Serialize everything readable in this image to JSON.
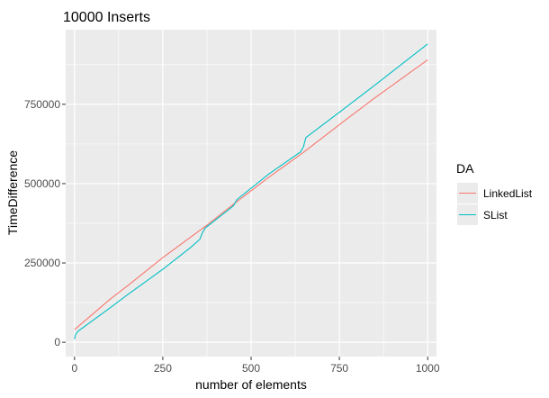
{
  "chart_data": {
    "type": "line",
    "title": "10000 Inserts",
    "xlabel": "number of elements",
    "ylabel": "TimeDifference",
    "xlim": [
      -25,
      1025
    ],
    "ylim": [
      -45000,
      985000
    ],
    "x_ticks": [
      0,
      250,
      500,
      750,
      1000
    ],
    "x_tick_labels": [
      "0",
      "250",
      "500",
      "750",
      "1000"
    ],
    "y_ticks": [
      0,
      250000,
      500000,
      750000
    ],
    "y_tick_labels": [
      "0",
      "250000",
      "500000",
      "750000"
    ],
    "grid": true,
    "legend": {
      "title": "DA",
      "position": "right"
    },
    "series": [
      {
        "name": "LinkedList",
        "color": "#F8766D",
        "x": [
          0,
          100,
          150,
          250,
          370,
          450,
          550,
          650,
          750,
          850,
          1000
        ],
        "y": [
          40000,
          135000,
          178000,
          267000,
          365000,
          435000,
          520000,
          600000,
          686000,
          770000,
          890000
        ]
      },
      {
        "name": "SList",
        "color": "#00BFC4",
        "x": [
          0,
          3,
          10,
          100,
          150,
          250,
          330,
          355,
          362,
          370,
          450,
          460,
          550,
          640,
          648,
          655,
          750,
          850,
          1000
        ],
        "y": [
          10000,
          25000,
          35000,
          108000,
          150000,
          230000,
          300000,
          325000,
          345000,
          360000,
          430000,
          450000,
          530000,
          600000,
          615000,
          645000,
          725000,
          810000,
          940000
        ]
      }
    ]
  }
}
